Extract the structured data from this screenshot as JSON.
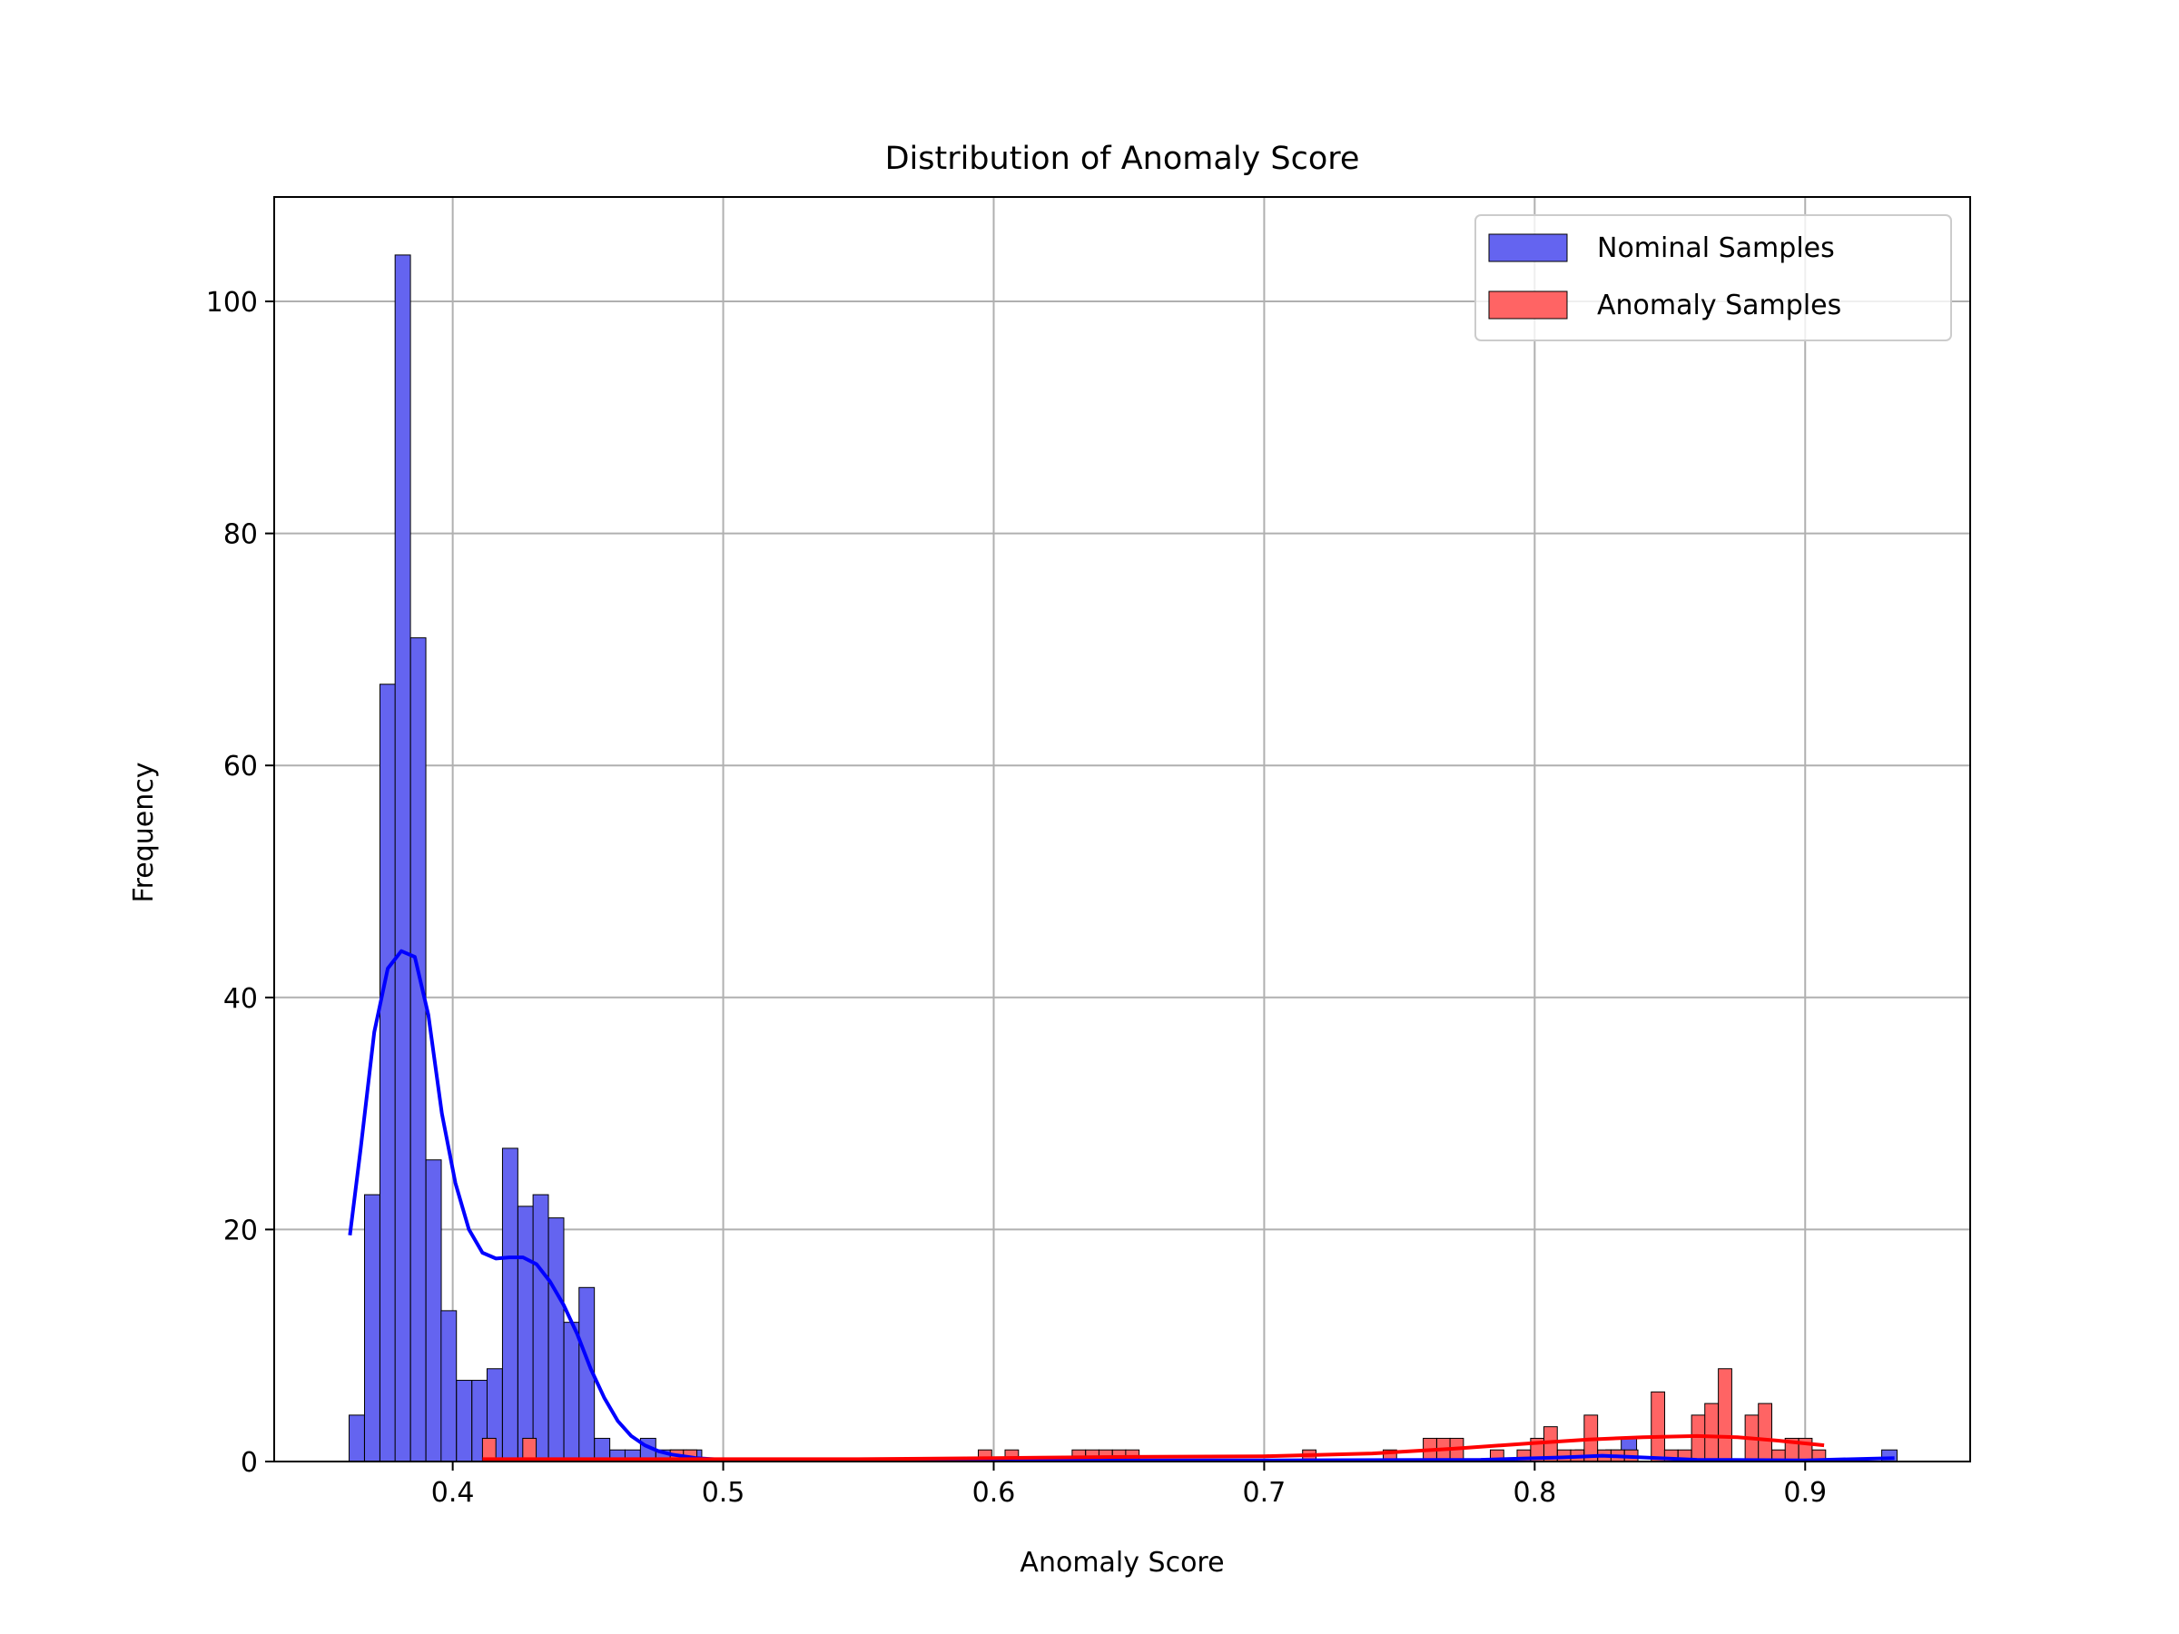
{
  "chart_data": {
    "type": "bar",
    "title": "Distribution of Anomaly Score",
    "xlabel": "Anomaly Score",
    "ylabel": "Frequency",
    "xlim": [
      0.334,
      0.961
    ],
    "ylim": [
      0,
      109
    ],
    "xticks": [
      0.4,
      0.5,
      0.6,
      0.7,
      0.8,
      0.9
    ],
    "xtick_labels": [
      "0.4",
      "0.5",
      "0.6",
      "0.7",
      "0.8",
      "0.9"
    ],
    "yticks": [
      0,
      20,
      40,
      60,
      80,
      100
    ],
    "ytick_labels": [
      "0",
      "20",
      "40",
      "60",
      "80",
      "100"
    ],
    "grid": true,
    "legend_position": "top-right",
    "series": [
      {
        "name": "Nominal Samples",
        "color": "#0000ff",
        "fill_color": "#6464f0",
        "bin_width": 0.00567,
        "bins": [
          [
            0.3617,
            4
          ],
          [
            0.3674,
            23
          ],
          [
            0.3731,
            67
          ],
          [
            0.3787,
            104
          ],
          [
            0.3844,
            71
          ],
          [
            0.3901,
            26
          ],
          [
            0.3957,
            13
          ],
          [
            0.4014,
            7
          ],
          [
            0.4071,
            7
          ],
          [
            0.4127,
            8
          ],
          [
            0.4184,
            27
          ],
          [
            0.4241,
            22
          ],
          [
            0.4297,
            23
          ],
          [
            0.4354,
            21
          ],
          [
            0.4411,
            12
          ],
          [
            0.4467,
            15
          ],
          [
            0.4524,
            2
          ],
          [
            0.4581,
            1
          ],
          [
            0.4637,
            1
          ],
          [
            0.4694,
            2
          ],
          [
            0.4751,
            1
          ],
          [
            0.4807,
            1
          ],
          [
            0.4864,
            1
          ],
          [
            0.815,
            1
          ],
          [
            0.8263,
            1
          ],
          [
            0.832,
            2
          ],
          [
            0.9283,
            1
          ]
        ],
        "kde": [
          [
            0.362,
            19.5
          ],
          [
            0.366,
            27
          ],
          [
            0.371,
            37
          ],
          [
            0.376,
            42.5
          ],
          [
            0.381,
            44
          ],
          [
            0.386,
            43.5
          ],
          [
            0.391,
            38.5
          ],
          [
            0.396,
            30
          ],
          [
            0.401,
            24
          ],
          [
            0.406,
            20
          ],
          [
            0.411,
            18
          ],
          [
            0.416,
            17.5
          ],
          [
            0.421,
            17.6
          ],
          [
            0.426,
            17.6
          ],
          [
            0.431,
            17
          ],
          [
            0.436,
            15.5
          ],
          [
            0.441,
            13.5
          ],
          [
            0.446,
            11
          ],
          [
            0.451,
            8
          ],
          [
            0.456,
            5.5
          ],
          [
            0.461,
            3.5
          ],
          [
            0.466,
            2.2
          ],
          [
            0.471,
            1.4
          ],
          [
            0.476,
            0.9
          ],
          [
            0.481,
            0.6
          ],
          [
            0.49,
            0.3
          ],
          [
            0.5,
            0.15
          ],
          [
            0.52,
            0.1
          ],
          [
            0.6,
            0.1
          ],
          [
            0.7,
            0.1
          ],
          [
            0.78,
            0.15
          ],
          [
            0.81,
            0.35
          ],
          [
            0.825,
            0.5
          ],
          [
            0.84,
            0.35
          ],
          [
            0.86,
            0.15
          ],
          [
            0.9,
            0.1
          ],
          [
            0.933,
            0.3
          ]
        ]
      },
      {
        "name": "Anomaly Samples",
        "color": "#ff0000",
        "fill_color": "#ff6464",
        "bin_width": 0.00496,
        "bins": [
          [
            0.411,
            2
          ],
          [
            0.4259,
            2
          ],
          [
            0.4804,
            1
          ],
          [
            0.4853,
            1
          ],
          [
            0.5943,
            1
          ],
          [
            0.6042,
            1
          ],
          [
            0.629,
            1
          ],
          [
            0.634,
            1
          ],
          [
            0.6389,
            1
          ],
          [
            0.6439,
            1
          ],
          [
            0.6488,
            1
          ],
          [
            0.7142,
            1
          ],
          [
            0.744,
            1
          ],
          [
            0.7588,
            2
          ],
          [
            0.7638,
            2
          ],
          [
            0.7687,
            2
          ],
          [
            0.7836,
            1
          ],
          [
            0.7935,
            1
          ],
          [
            0.7985,
            2
          ],
          [
            0.8034,
            3
          ],
          [
            0.8084,
            1
          ],
          [
            0.8133,
            1
          ],
          [
            0.8183,
            4
          ],
          [
            0.8233,
            1
          ],
          [
            0.8282,
            1
          ],
          [
            0.8332,
            1
          ],
          [
            0.8431,
            6
          ],
          [
            0.848,
            1
          ],
          [
            0.853,
            1
          ],
          [
            0.858,
            4
          ],
          [
            0.8629,
            5
          ],
          [
            0.8679,
            8
          ],
          [
            0.8778,
            4
          ],
          [
            0.8827,
            5
          ],
          [
            0.8877,
            1
          ],
          [
            0.8926,
            2
          ],
          [
            0.8976,
            2
          ],
          [
            0.9026,
            1
          ]
        ],
        "kde": [
          [
            0.411,
            0.2
          ],
          [
            0.45,
            0.2
          ],
          [
            0.5,
            0.2
          ],
          [
            0.55,
            0.2
          ],
          [
            0.6,
            0.3
          ],
          [
            0.65,
            0.4
          ],
          [
            0.7,
            0.45
          ],
          [
            0.74,
            0.7
          ],
          [
            0.77,
            1.1
          ],
          [
            0.8,
            1.6
          ],
          [
            0.82,
            1.9
          ],
          [
            0.84,
            2.1
          ],
          [
            0.86,
            2.2
          ],
          [
            0.875,
            2.1
          ],
          [
            0.89,
            1.8
          ],
          [
            0.907,
            1.4
          ]
        ]
      }
    ]
  }
}
